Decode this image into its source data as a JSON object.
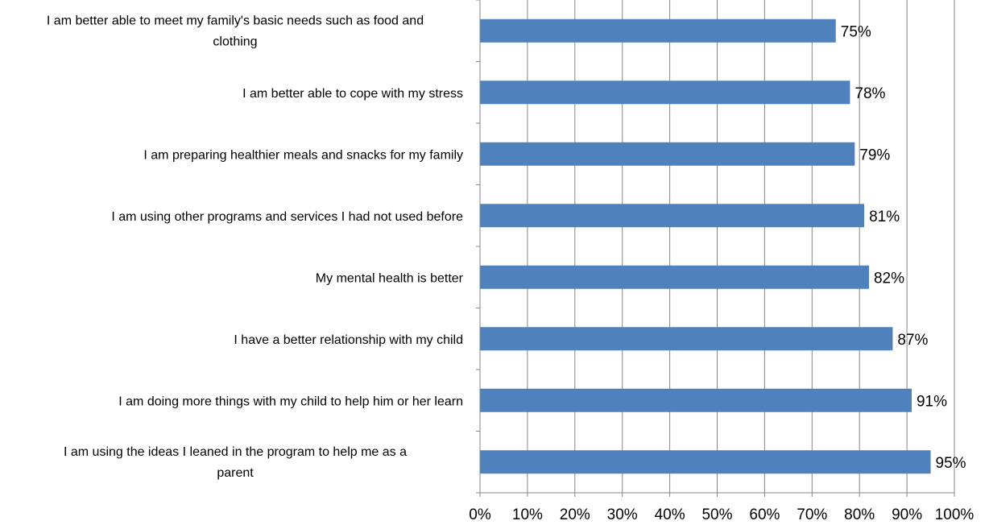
{
  "chart_data": {
    "type": "bar",
    "orientation": "horizontal",
    "categories": [
      "I am better able to meet my family's basic needs such as food and clothing",
      "I am better able to cope with my stress",
      "I am preparing healthier meals and snacks for my family",
      "I am using other programs and services I had not used before",
      "My mental health is better",
      "I have a better relationship with my child",
      "I am doing more things with my child to help him or her learn",
      "I am using the ideas I leaned in the program to help me as a parent"
    ],
    "values": [
      75,
      78,
      79,
      81,
      82,
      87,
      91,
      95
    ],
    "value_labels": [
      "75%",
      "78%",
      "79%",
      "81%",
      "82%",
      "87%",
      "91%",
      "95%"
    ],
    "xlim": [
      0,
      100
    ],
    "x_ticks": [
      "0%",
      "10%",
      "20%",
      "30%",
      "40%",
      "50%",
      "60%",
      "70%",
      "80%",
      "90%",
      "100%"
    ],
    "grid": "vertical",
    "bar_color": "#4f81bd",
    "grid_color": "#868686",
    "title": "",
    "xlabel": "",
    "ylabel": ""
  }
}
